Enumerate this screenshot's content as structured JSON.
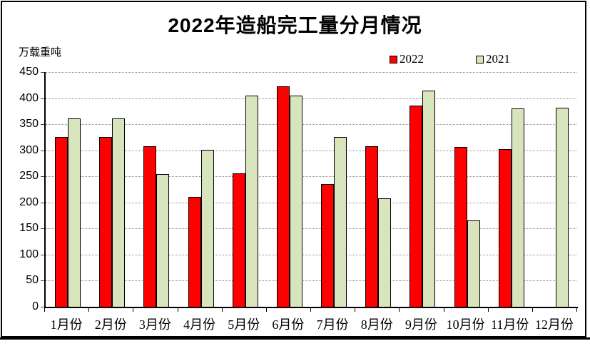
{
  "page": {
    "background_color": "#ffffff",
    "frame_border_color": "#000000"
  },
  "chart_data": {
    "type": "bar",
    "title": "2022年造船完工量分月情况",
    "y_unit_label": "万载重吨",
    "xlabel": "",
    "ylabel": "万载重吨",
    "categories": [
      "1月份",
      "2月份",
      "3月份",
      "4月份",
      "5月份",
      "6月份",
      "7月份",
      "8月份",
      "9月份",
      "10月份",
      "11月份",
      "12月份"
    ],
    "series": [
      {
        "name": "2022",
        "color": "#ff0000",
        "values": [
          326,
          326,
          308,
          210,
          256,
          422,
          235,
          308,
          386,
          307,
          302,
          null
        ]
      },
      {
        "name": "2021",
        "color": "#d8e4bc",
        "values": [
          361,
          361,
          255,
          301,
          405,
          405,
          326,
          208,
          414,
          166,
          380,
          381
        ]
      }
    ],
    "ylim": [
      0,
      450
    ],
    "yticks": [
      0,
      50,
      100,
      150,
      200,
      250,
      300,
      350,
      400,
      450
    ],
    "grid": "horizontal dotted gray",
    "legend_position": "top-right",
    "gridline_color": "#8c8c8c",
    "axis_color": "#000000"
  }
}
